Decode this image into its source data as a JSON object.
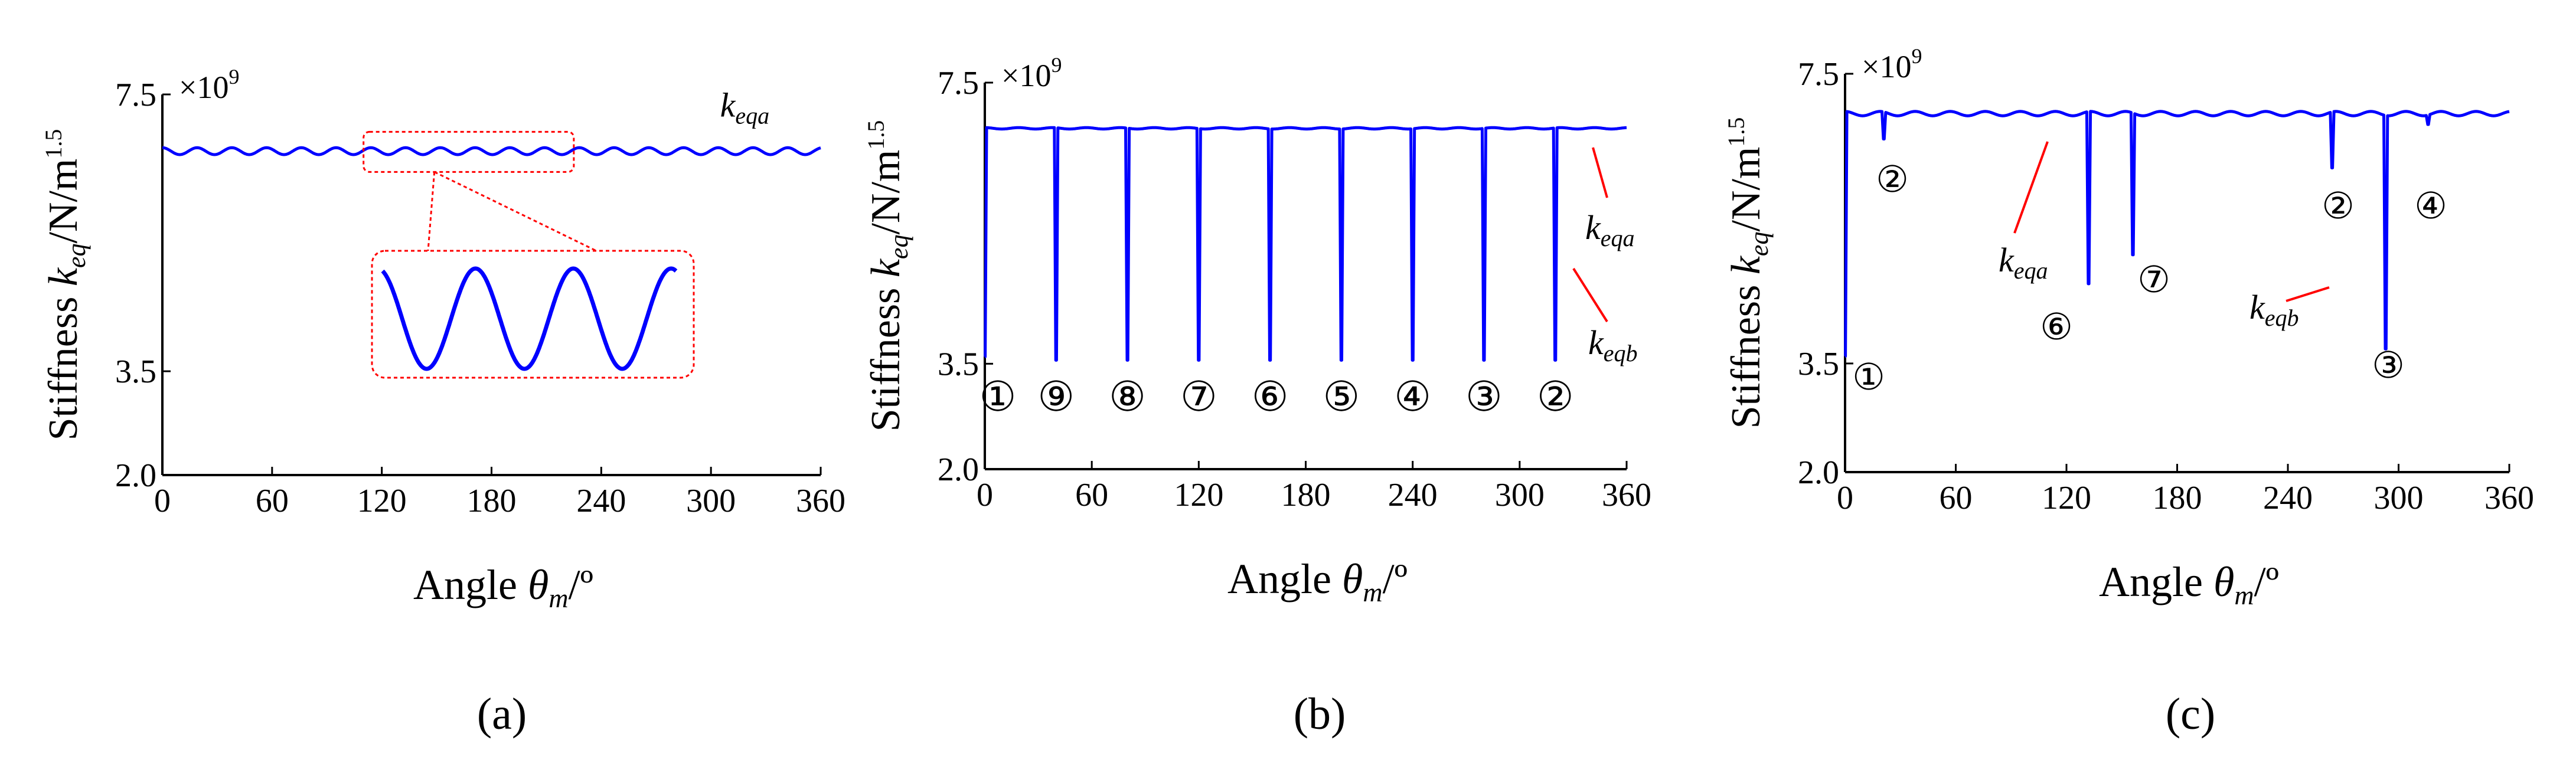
{
  "colors": {
    "stiffness": "#0000ff",
    "annotation": "#ff0000",
    "axis": "#000000"
  },
  "chart_data": [
    {
      "id": "a",
      "type": "line",
      "caption": "(a)",
      "ylabel_prefix": "Stiffness",
      "ylabel_symbol": "k",
      "ylabel_sub": "eq",
      "ylabel_unit": "/N/m",
      "ylabel_unit_sup": "1.5",
      "xlabel_prefix": "Angle",
      "xlabel_symbol": "θ",
      "xlabel_sub": "m",
      "xlabel_unit": "/º",
      "scale_text": "×10",
      "scale_sup": "9",
      "xlim": [
        0,
        360
      ],
      "ylim": [
        2.0,
        7.5
      ],
      "xticks": [
        "0",
        "60",
        "120",
        "180",
        "240",
        "300",
        "360"
      ],
      "yticks": [
        "2.0",
        "3.5",
        "7.5"
      ],
      "series": [
        {
          "name": "k_eqa",
          "baseline": 6.68,
          "ripple_amplitude": 0.05,
          "ripple_period_deg": 19,
          "dips": []
        }
      ],
      "series_labels": [
        {
          "symbol": "k",
          "sub": "eqa"
        }
      ],
      "zoom": {
        "x_range": [
          110,
          225
        ],
        "inset_periods": 3,
        "shape": "cosine ripple"
      }
    },
    {
      "id": "b",
      "type": "line",
      "caption": "(b)",
      "ylabel_prefix": "Stiffness",
      "ylabel_symbol": "k",
      "ylabel_sub": "eq",
      "ylabel_unit": "/N/m",
      "ylabel_unit_sup": "1.5",
      "xlabel_prefix": "Angle",
      "xlabel_symbol": "θ",
      "xlabel_sub": "m",
      "xlabel_unit": "/º",
      "scale_text": "×10",
      "scale_sup": "9",
      "xlim": [
        0,
        360
      ],
      "ylim": [
        2.0,
        7.5
      ],
      "xticks": [
        "0",
        "60",
        "120",
        "180",
        "240",
        "300",
        "360"
      ],
      "yticks": [
        "2.0",
        "3.5",
        "7.5"
      ],
      "series": [
        {
          "name": "k_eqa",
          "baseline": 6.85,
          "ripple_amplitude": 0.01,
          "ripple_period_deg": 19,
          "dips": [
            {
              "x": 0,
              "y": 3.6
            },
            {
              "x": 40,
              "y": 3.55
            },
            {
              "x": 80,
              "y": 3.55
            },
            {
              "x": 120,
              "y": 3.55
            },
            {
              "x": 160,
              "y": 3.55
            },
            {
              "x": 200,
              "y": 3.55
            },
            {
              "x": 240,
              "y": 3.55
            },
            {
              "x": 280,
              "y": 3.55
            },
            {
              "x": 320,
              "y": 3.55
            }
          ]
        }
      ],
      "series_labels": [
        {
          "symbol": "k",
          "sub": "eqa"
        },
        {
          "symbol": "k",
          "sub": "eqb"
        }
      ],
      "markers": [
        "①",
        "⑨",
        "⑧",
        "⑦",
        "⑥",
        "⑤",
        "④",
        "③",
        "②"
      ]
    },
    {
      "id": "c",
      "type": "line",
      "caption": "(c)",
      "ylabel_prefix": "Stiffness",
      "ylabel_symbol": "k",
      "ylabel_sub": "eq",
      "ylabel_unit": "/N/m",
      "ylabel_unit_sup": "1.5",
      "xlabel_prefix": "Angle",
      "xlabel_symbol": "θ",
      "xlabel_sub": "m",
      "xlabel_unit": "/º",
      "scale_text": "×10",
      "scale_sup": "9",
      "xlim": [
        0,
        360
      ],
      "ylim": [
        2.0,
        7.5
      ],
      "xticks": [
        "0",
        "60",
        "120",
        "180",
        "240",
        "300",
        "360"
      ],
      "yticks": [
        "2.0",
        "3.5",
        "7.5"
      ],
      "series": [
        {
          "name": "k_eqa",
          "baseline": 6.95,
          "ripple_amplitude": 0.03,
          "ripple_period_deg": 19,
          "dips": [
            {
              "x": 0,
              "y": 3.6
            },
            {
              "x": 21,
              "y": 6.6
            },
            {
              "x": 132,
              "y": 4.6
            },
            {
              "x": 156,
              "y": 5.0
            },
            {
              "x": 264,
              "y": 6.2
            },
            {
              "x": 293,
              "y": 3.7
            },
            {
              "x": 316,
              "y": 6.8
            }
          ]
        }
      ],
      "series_labels": [
        {
          "symbol": "k",
          "sub": "eqa"
        },
        {
          "symbol": "k",
          "sub": "eqb"
        }
      ],
      "markers": [
        "①",
        "②",
        "⑥",
        "⑦",
        "②",
        "③",
        "④"
      ]
    }
  ]
}
